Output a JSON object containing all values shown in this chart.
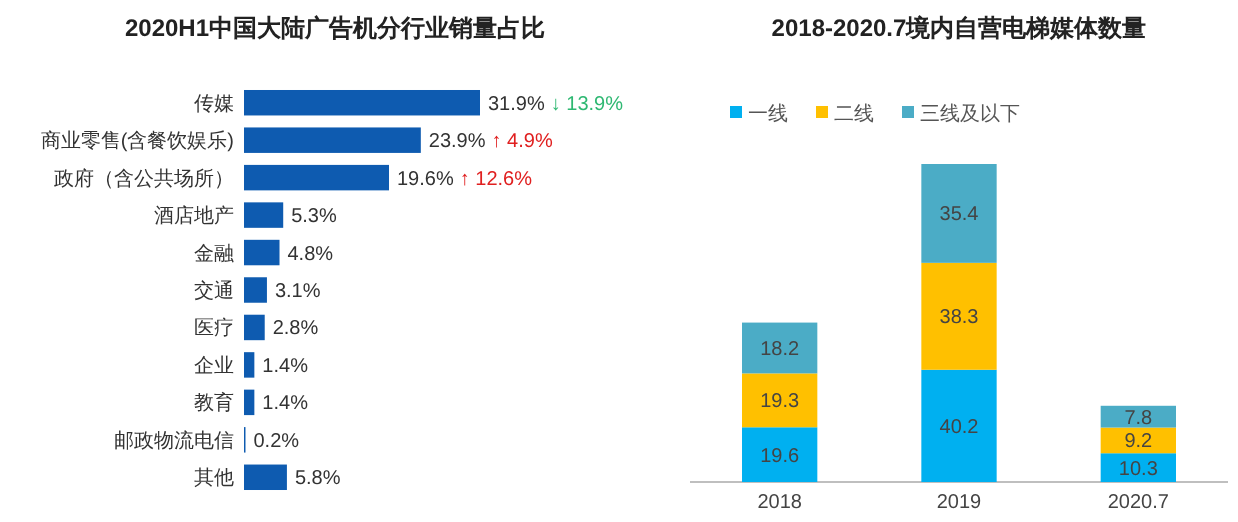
{
  "chart_data": [
    {
      "type": "bar",
      "orientation": "horizontal",
      "title": "2020H1中国大陆广告机分行业销量占比",
      "categories": [
        "传媒",
        "商业零售(含餐饮娱乐)",
        "政府（含公共场所）",
        "酒店地产",
        "金融",
        "交通",
        "医疗",
        "企业",
        "教育",
        "邮政物流电信",
        "其他"
      ],
      "values": [
        31.9,
        23.9,
        19.6,
        5.3,
        4.8,
        3.1,
        2.8,
        1.4,
        1.4,
        0.2,
        5.8
      ],
      "value_labels": [
        "31.9%",
        "23.9%",
        "19.6%",
        "5.3%",
        "4.8%",
        "3.1%",
        "2.8%",
        "1.4%",
        "1.4%",
        "0.2%",
        "5.8%"
      ],
      "color": "#0e5bb0",
      "annotations": [
        "↓ 13.9%",
        "↑ 4.9%",
        "↑ 12.6%"
      ]
    },
    {
      "type": "bar",
      "stacked": true,
      "title": "2018-2020.7境内自营电梯媒体数量",
      "categories": [
        "2018",
        "2019",
        "2020.7"
      ],
      "data_labels": true,
      "legend": "top",
      "series": [
        {
          "name": "一线",
          "color": "#00b0f0",
          "values": [
            19.6,
            40.2,
            10.3
          ]
        },
        {
          "name": "二线",
          "color": "#ffc000",
          "values": [
            19.3,
            38.3,
            9.2
          ]
        },
        {
          "name": "三线及以下",
          "color": "#4bacc6",
          "values": [
            18.2,
            35.4,
            7.8
          ]
        }
      ]
    }
  ]
}
